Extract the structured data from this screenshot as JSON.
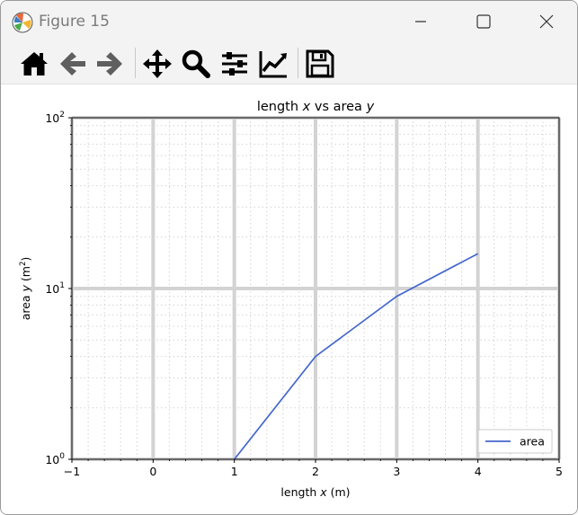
{
  "window": {
    "title": "Figure 15"
  },
  "toolbar": {
    "tools": [
      "home-icon",
      "back-arrow-icon",
      "forward-arrow-icon",
      "pan-move-icon",
      "zoom-magnifier-icon",
      "configure-subplots-icon",
      "edit-axis-icon",
      "save-floppy-icon"
    ]
  },
  "colors": {
    "line": "#4466cc",
    "grid": "#d3d3d3",
    "toolbar_bg": "#f3f3f3"
  },
  "chart_data": {
    "type": "line",
    "title_parts": [
      "length ",
      "x",
      " vs area ",
      "y"
    ],
    "xlabel_parts": [
      "length ",
      "x",
      " (m)"
    ],
    "ylabel_parts": [
      "area ",
      "y",
      " (m",
      "2",
      ")"
    ],
    "xlim": [
      -1,
      5
    ],
    "ylim": [
      1,
      100
    ],
    "yscale": "log",
    "x_ticks": [
      "−1",
      "0",
      "1",
      "2",
      "3",
      "4",
      "5"
    ],
    "y_ticks": [
      {
        "base": "10",
        "exp": "0"
      },
      {
        "base": "10",
        "exp": "1"
      },
      {
        "base": "10",
        "exp": "2"
      }
    ],
    "grid": "major solid, minor dotted",
    "legend_position": "lower-right",
    "series": [
      {
        "name": "area",
        "x": [
          1,
          2,
          3,
          4
        ],
        "y": [
          1,
          4,
          9,
          16
        ]
      }
    ]
  }
}
